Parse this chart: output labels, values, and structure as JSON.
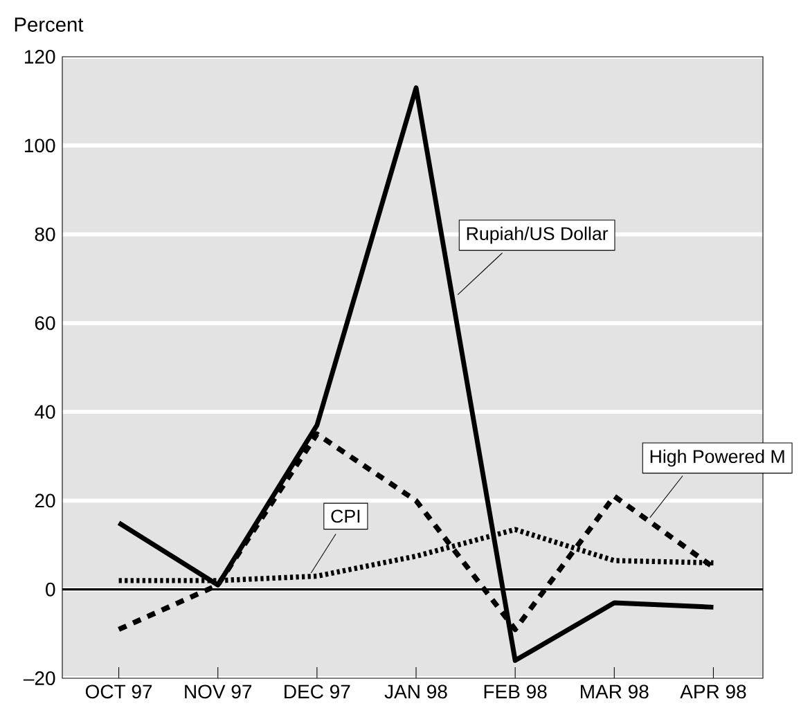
{
  "chart_data": {
    "type": "line",
    "ylabel": "Percent",
    "categories": [
      "OCT 97",
      "NOV 97",
      "DEC 97",
      "JAN 98",
      "FEB 98",
      "MAR 98",
      "APR 98"
    ],
    "series": [
      {
        "name": "Rupiah/US Dollar",
        "color": "#000000",
        "line_style": "solid",
        "values": [
          15,
          1,
          37,
          113,
          -16,
          -3,
          -4
        ]
      },
      {
        "name": "High Powered M",
        "color": "#000000",
        "line_style": "dashed",
        "values": [
          -9,
          1,
          35,
          20,
          -9,
          21,
          5
        ]
      },
      {
        "name": "CPI",
        "color": "#000000",
        "line_style": "dotted",
        "values": [
          2,
          2,
          3,
          7.5,
          13.5,
          6.5,
          6
        ]
      }
    ],
    "ylim": [
      -20,
      120
    ],
    "yticks": [
      {
        "value": -20,
        "label": "–20"
      },
      0,
      20,
      40,
      60,
      80,
      100,
      120
    ],
    "grid": "y",
    "marker": "none",
    "ref_lines": [
      {
        "axis": "y",
        "value": 0,
        "color": "#000000"
      }
    ]
  }
}
